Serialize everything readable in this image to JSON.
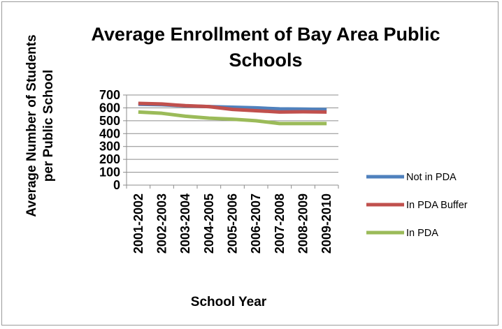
{
  "chart_data": {
    "type": "line",
    "title_lines": [
      "Average Enrollment of Bay Area Public",
      "Schools"
    ],
    "xlabel": "School Year",
    "ylabel_lines": [
      "Average Number of Students",
      "per Public School"
    ],
    "categories": [
      "2001-2002",
      "2002-2003",
      "2003-2004",
      "2004-2005",
      "2005-2006",
      "2006-2007",
      "2007-2008",
      "2008-2009",
      "2009-2010"
    ],
    "yticks": [
      0,
      100,
      200,
      300,
      400,
      500,
      600,
      700
    ],
    "ylim": [
      0,
      700
    ],
    "grid": true,
    "legend_position": "right",
    "series": [
      {
        "name": "Not in PDA",
        "color": "#4f81bd",
        "values": [
          628,
          625,
          615,
          610,
          605,
          600,
          592,
          590,
          587
        ]
      },
      {
        "name": "In PDA Buffer",
        "color": "#c0504d",
        "values": [
          635,
          630,
          617,
          610,
          588,
          578,
          568,
          570,
          568
        ]
      },
      {
        "name": "In PDA",
        "color": "#9bbb59",
        "values": [
          568,
          558,
          535,
          520,
          512,
          500,
          478,
          478,
          478
        ]
      }
    ]
  }
}
